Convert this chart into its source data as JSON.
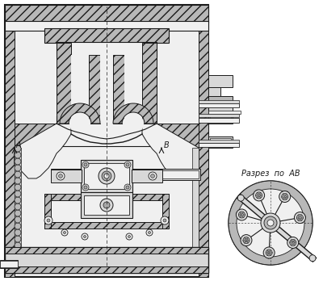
{
  "bg_color": "#ffffff",
  "lc": "#1a1a1a",
  "hatch_fc": "#b8b8b8",
  "light_fc": "#f0f0f0",
  "mid_fc": "#d8d8d8",
  "dark_fc": "#a8a8a8",
  "section_label": "Разрез  по  AB",
  "figsize": [
    4.0,
    3.48
  ],
  "dpi": 100
}
